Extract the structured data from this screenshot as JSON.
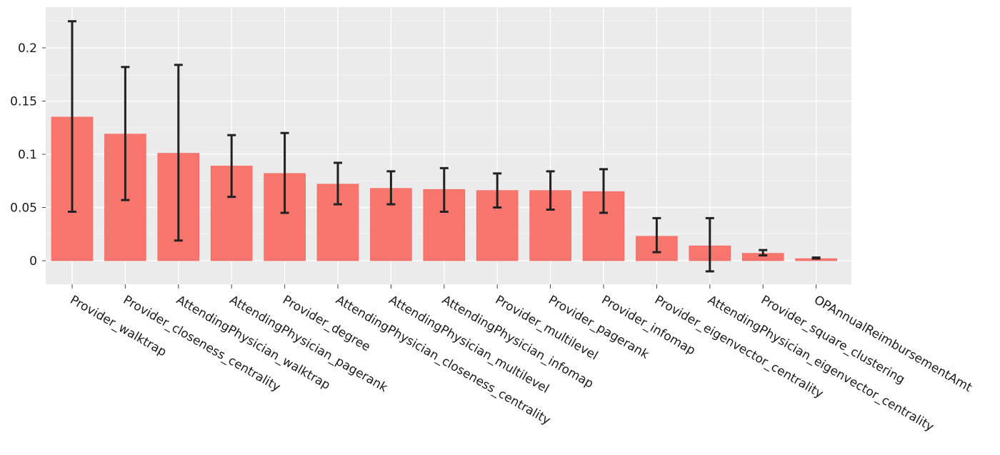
{
  "chart_data": {
    "type": "bar",
    "title": "",
    "xlabel": "",
    "ylabel": "",
    "ylim": [
      -0.023,
      0.238
    ],
    "y_ticks": [
      0,
      0.05,
      0.1,
      0.15,
      0.2
    ],
    "y_tick_labels": [
      "0",
      "0.05",
      "0.1",
      "0.15",
      "0.2"
    ],
    "grid": true,
    "categories": [
      "Provider_walktrap",
      "Provider_closeness_centrality",
      "AttendingPhysician_walktrap",
      "AttendingPhysician_pagerank",
      "Provider_degree",
      "AttendingPhysician_closeness_centrality",
      "AttendingPhysician_multilevel",
      "AttendingPhysician_infomap",
      "Provider_multilevel",
      "Provider_pagerank",
      "Provider_infomap",
      "Provider_eigenvector_centrality",
      "AttendingPhysician_eigenvector_centrality",
      "Provider_square_clustering",
      "OPAnnualReimbursementAmt"
    ],
    "values": [
      0.135,
      0.119,
      0.101,
      0.089,
      0.082,
      0.072,
      0.068,
      0.067,
      0.066,
      0.066,
      0.065,
      0.023,
      0.014,
      0.007,
      0.002
    ],
    "error_low": [
      0.046,
      0.057,
      0.019,
      0.06,
      0.045,
      0.053,
      0.053,
      0.046,
      0.05,
      0.048,
      0.045,
      0.008,
      -0.01,
      0.005,
      0.002
    ],
    "error_high": [
      0.225,
      0.182,
      0.184,
      0.118,
      0.12,
      0.092,
      0.084,
      0.087,
      0.082,
      0.084,
      0.086,
      0.04,
      0.04,
      0.01,
      0.003
    ],
    "colors": {
      "bar": "#F8766D",
      "bar_border": "#F36259",
      "panel": "#EBEBEB",
      "grid": "#FFFFFF",
      "error": "#222222",
      "tick": "#444444"
    }
  }
}
